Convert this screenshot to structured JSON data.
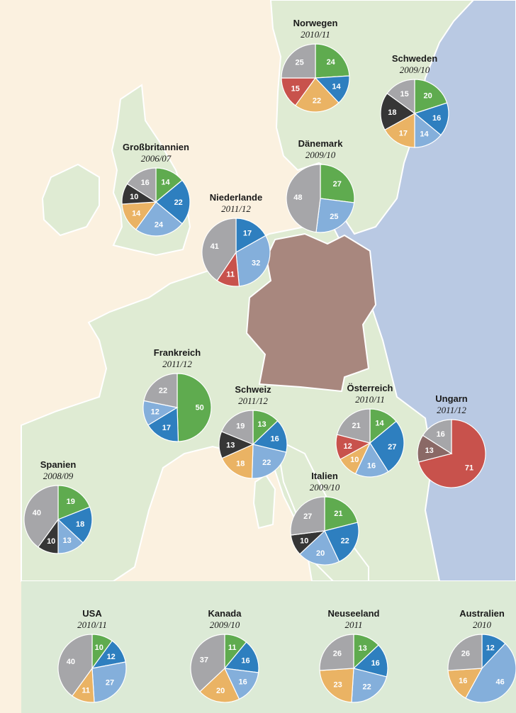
{
  "colors": {
    "sea": "#fbf1e0",
    "land": "#dfebd3",
    "east": "#b9c9e3",
    "germany": "#a8877e",
    "border": "#ffffff",
    "panel": "#dcead6",
    "green": "#5fab4f",
    "darkblue": "#2e7fbf",
    "lightblue": "#84afdb",
    "orange": "#eab364",
    "red": "#c8524c",
    "black": "#363636",
    "gray": "#a6a6a9",
    "brown": "#8a6966"
  },
  "chart_data": [
    {
      "type": "pie",
      "name": "Norwegen",
      "year": "2010/11",
      "slices": [
        {
          "value": 24,
          "color": "green"
        },
        {
          "value": 14,
          "color": "darkblue"
        },
        {
          "value": 22,
          "color": "orange"
        },
        {
          "value": 15,
          "color": "red"
        },
        {
          "value": 25,
          "color": "gray"
        }
      ]
    },
    {
      "type": "pie",
      "name": "Schweden",
      "year": "2009/10",
      "slices": [
        {
          "value": 20,
          "color": "green"
        },
        {
          "value": 16,
          "color": "darkblue"
        },
        {
          "value": 14,
          "color": "lightblue"
        },
        {
          "value": 17,
          "color": "orange"
        },
        {
          "value": 18,
          "color": "black"
        },
        {
          "value": 15,
          "color": "gray"
        }
      ]
    },
    {
      "type": "pie",
      "name": "Großbritannien",
      "year": "2006/07",
      "slices": [
        {
          "value": 14,
          "color": "green"
        },
        {
          "value": 22,
          "color": "darkblue"
        },
        {
          "value": 24,
          "color": "lightblue"
        },
        {
          "value": 14,
          "color": "orange"
        },
        {
          "value": 10,
          "color": "black"
        },
        {
          "value": 16,
          "color": "gray"
        }
      ]
    },
    {
      "type": "pie",
      "name": "Dänemark",
      "year": "2009/10",
      "slices": [
        {
          "value": 27,
          "color": "green"
        },
        {
          "value": 25,
          "color": "lightblue"
        },
        {
          "value": 48,
          "color": "gray"
        }
      ]
    },
    {
      "type": "pie",
      "name": "Niederlande",
      "year": "2011/12",
      "slices": [
        {
          "value": 17,
          "color": "darkblue"
        },
        {
          "value": 32,
          "color": "lightblue"
        },
        {
          "value": 11,
          "color": "red"
        },
        {
          "value": 41,
          "color": "gray"
        }
      ]
    },
    {
      "type": "pie",
      "name": "Frankreich",
      "year": "2011/12",
      "slices": [
        {
          "value": 50,
          "color": "green"
        },
        {
          "value": 17,
          "color": "darkblue"
        },
        {
          "value": 12,
          "color": "lightblue"
        },
        {
          "value": 22,
          "color": "gray"
        }
      ]
    },
    {
      "type": "pie",
      "name": "Schweiz",
      "year": "2011/12",
      "slices": [
        {
          "value": 13,
          "color": "green"
        },
        {
          "value": 16,
          "color": "darkblue"
        },
        {
          "value": 22,
          "color": "lightblue"
        },
        {
          "value": 18,
          "color": "orange"
        },
        {
          "value": 13,
          "color": "black"
        },
        {
          "value": 19,
          "color": "gray"
        }
      ]
    },
    {
      "type": "pie",
      "name": "Österreich",
      "year": "2010/11",
      "slices": [
        {
          "value": 14,
          "color": "green"
        },
        {
          "value": 27,
          "color": "darkblue"
        },
        {
          "value": 16,
          "color": "lightblue"
        },
        {
          "value": 10,
          "color": "orange"
        },
        {
          "value": 12,
          "color": "red"
        },
        {
          "value": 21,
          "color": "gray"
        }
      ]
    },
    {
      "type": "pie",
      "name": "Ungarn",
      "year": "2011/12",
      "slices": [
        {
          "value": 71,
          "color": "red"
        },
        {
          "value": 13,
          "color": "brown"
        },
        {
          "value": 16,
          "color": "gray"
        }
      ]
    },
    {
      "type": "pie",
      "name": "Spanien",
      "year": "2008/09",
      "slices": [
        {
          "value": 19,
          "color": "green"
        },
        {
          "value": 18,
          "color": "darkblue"
        },
        {
          "value": 13,
          "color": "lightblue"
        },
        {
          "value": 10,
          "color": "black"
        },
        {
          "value": 40,
          "color": "gray"
        }
      ]
    },
    {
      "type": "pie",
      "name": "Italien",
      "year": "2009/10",
      "slices": [
        {
          "value": 21,
          "color": "green"
        },
        {
          "value": 22,
          "color": "darkblue"
        },
        {
          "value": 20,
          "color": "lightblue"
        },
        {
          "value": 10,
          "color": "black"
        },
        {
          "value": 27,
          "color": "gray"
        }
      ]
    },
    {
      "type": "pie",
      "name": "USA",
      "year": "2010/11",
      "slices": [
        {
          "value": 10,
          "color": "green"
        },
        {
          "value": 12,
          "color": "darkblue"
        },
        {
          "value": 27,
          "color": "lightblue"
        },
        {
          "value": 11,
          "color": "orange"
        },
        {
          "value": 40,
          "color": "gray"
        }
      ]
    },
    {
      "type": "pie",
      "name": "Kanada",
      "year": "2009/10",
      "slices": [
        {
          "value": 11,
          "color": "green"
        },
        {
          "value": 16,
          "color": "darkblue"
        },
        {
          "value": 16,
          "color": "lightblue"
        },
        {
          "value": 20,
          "color": "orange"
        },
        {
          "value": 37,
          "color": "gray"
        }
      ]
    },
    {
      "type": "pie",
      "name": "Neuseeland",
      "year": "2011",
      "slices": [
        {
          "value": 13,
          "color": "green"
        },
        {
          "value": 16,
          "color": "darkblue"
        },
        {
          "value": 22,
          "color": "lightblue"
        },
        {
          "value": 23,
          "color": "orange"
        },
        {
          "value": 26,
          "color": "gray"
        }
      ]
    },
    {
      "type": "pie",
      "name": "Australien",
      "year": "2010",
      "slices": [
        {
          "value": 12,
          "color": "darkblue"
        },
        {
          "value": 46,
          "color": "lightblue"
        },
        {
          "value": 16,
          "color": "orange"
        },
        {
          "value": 26,
          "color": "gray"
        }
      ]
    }
  ]
}
